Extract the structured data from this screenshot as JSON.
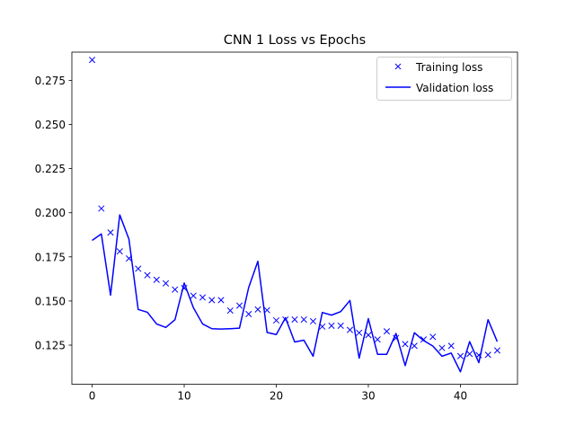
{
  "chart_data": {
    "type": "line",
    "title": "CNN 1 Loss vs Epochs",
    "xlabel": "",
    "ylabel": "",
    "xlim": [
      -2.2,
      46.2
    ],
    "ylim": [
      0.1028,
      0.291
    ],
    "x_ticks": [
      0,
      10,
      20,
      30,
      40
    ],
    "y_ticks": [
      0.125,
      0.15,
      0.175,
      0.2,
      0.225,
      0.25,
      0.275
    ],
    "y_tick_labels": [
      "0.125",
      "0.150",
      "0.175",
      "0.200",
      "0.225",
      "0.250",
      "0.275"
    ],
    "legend": {
      "position": "top-right"
    },
    "series": [
      {
        "name": "Training loss",
        "style": "markers",
        "marker": "x",
        "color": "#0000ff",
        "x": [
          0,
          1,
          2,
          3,
          4,
          5,
          6,
          7,
          8,
          9,
          10,
          11,
          12,
          13,
          14,
          15,
          16,
          17,
          18,
          19,
          20,
          21,
          22,
          23,
          24,
          25,
          26,
          27,
          28,
          29,
          30,
          31,
          32,
          33,
          34,
          35,
          36,
          37,
          38,
          39,
          40,
          41,
          42,
          43,
          44
        ],
        "y": [
          0.2866,
          0.2024,
          0.1888,
          0.1781,
          0.1741,
          0.1683,
          0.1646,
          0.162,
          0.16,
          0.1565,
          0.1573,
          0.153,
          0.152,
          0.1505,
          0.1505,
          0.1446,
          0.1474,
          0.1426,
          0.1452,
          0.1448,
          0.139,
          0.1395,
          0.1395,
          0.1395,
          0.1385,
          0.1355,
          0.136,
          0.136,
          0.1336,
          0.132,
          0.1307,
          0.1282,
          0.1328,
          0.129,
          0.1256,
          0.1246,
          0.1282,
          0.1297,
          0.1234,
          0.1246,
          0.1188,
          0.12,
          0.1193,
          0.1195,
          0.122
        ]
      },
      {
        "name": "Validation loss",
        "style": "line",
        "color": "#0000ff",
        "x": [
          0,
          1,
          2,
          3,
          4,
          5,
          6,
          7,
          8,
          9,
          10,
          11,
          12,
          13,
          14,
          15,
          16,
          17,
          18,
          19,
          20,
          21,
          22,
          23,
          24,
          25,
          26,
          27,
          28,
          29,
          30,
          31,
          32,
          33,
          34,
          35,
          36,
          37,
          38,
          39,
          40,
          41,
          42,
          43,
          44
        ],
        "y": [
          0.1843,
          0.188,
          0.1533,
          0.1988,
          0.185,
          0.1452,
          0.1436,
          0.137,
          0.135,
          0.1394,
          0.1602,
          0.1462,
          0.137,
          0.1343,
          0.1341,
          0.1343,
          0.1346,
          0.1576,
          0.1725,
          0.1322,
          0.131,
          0.1405,
          0.1268,
          0.1278,
          0.1187,
          0.1435,
          0.142,
          0.144,
          0.1503,
          0.1176,
          0.14,
          0.1198,
          0.1198,
          0.1316,
          0.1134,
          0.132,
          0.1276,
          0.1245,
          0.1187,
          0.1205,
          0.1099,
          0.127,
          0.1151,
          0.1394,
          0.127
        ]
      }
    ]
  }
}
